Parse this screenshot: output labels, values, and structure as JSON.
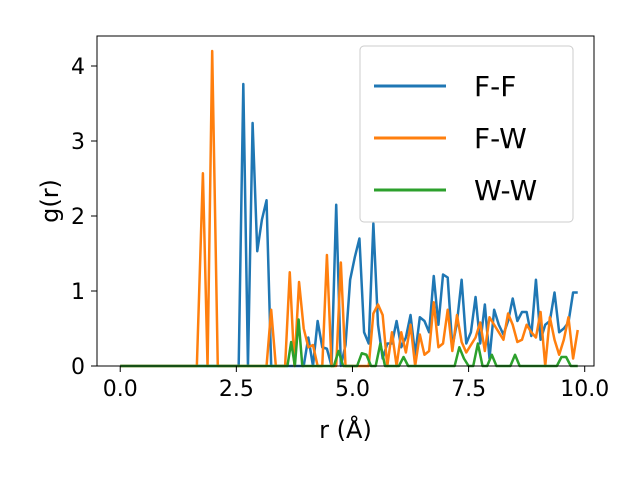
{
  "chart_data": {
    "type": "line",
    "xlabel": "r (Å)",
    "ylabel": "g(r)",
    "xlim": [
      -0.5,
      10.2
    ],
    "ylim": [
      0,
      4.4
    ],
    "xticks": [
      0.0,
      2.5,
      5.0,
      7.5,
      10.0
    ],
    "xtick_labels": [
      "0.0",
      "2.5",
      "5.0",
      "7.5",
      "10.0"
    ],
    "yticks": [
      0,
      1,
      2,
      3,
      4
    ],
    "ytick_labels": [
      "0",
      "1",
      "2",
      "3",
      "4"
    ],
    "grid": false,
    "legend_position": "top-right",
    "series": [
      {
        "name": "F-F",
        "color": "#1f77b4",
        "x": [
          0.0,
          2.45,
          2.55,
          2.65,
          2.75,
          2.85,
          2.95,
          3.05,
          3.15,
          3.25,
          3.35,
          3.45,
          3.55,
          3.65,
          3.75,
          3.85,
          3.95,
          4.05,
          4.15,
          4.25,
          4.35,
          4.45,
          4.55,
          4.65,
          4.75,
          4.85,
          4.95,
          5.05,
          5.15,
          5.25,
          5.35,
          5.45,
          5.55,
          5.65,
          5.75,
          5.85,
          5.95,
          6.05,
          6.15,
          6.25,
          6.35,
          6.45,
          6.55,
          6.65,
          6.75,
          6.85,
          6.95,
          7.05,
          7.15,
          7.25,
          7.35,
          7.45,
          7.55,
          7.65,
          7.75,
          7.85,
          7.95,
          8.05,
          8.15,
          8.25,
          8.35,
          8.45,
          8.55,
          8.65,
          8.75,
          8.85,
          8.95,
          9.05,
          9.15,
          9.25,
          9.35,
          9.45,
          9.55,
          9.65,
          9.75,
          9.85
        ],
        "y": [
          0.0,
          0.0,
          0.0,
          3.76,
          0.0,
          3.24,
          1.53,
          1.95,
          2.21,
          0.0,
          0.0,
          0.0,
          0.0,
          0.0,
          0.0,
          0.0,
          0.0,
          0.38,
          0.0,
          0.6,
          0.25,
          0.23,
          0.0,
          2.15,
          0.0,
          0.28,
          1.15,
          1.45,
          1.7,
          0.45,
          0.3,
          1.9,
          0.55,
          0.1,
          0.3,
          0.3,
          0.6,
          0.25,
          0.38,
          0.68,
          0.15,
          0.65,
          0.6,
          0.45,
          1.2,
          0.55,
          1.22,
          1.18,
          0.25,
          0.58,
          1.15,
          0.3,
          0.45,
          0.92,
          0.3,
          0.82,
          0.1,
          0.75,
          0.55,
          0.42,
          0.6,
          0.9,
          0.6,
          0.72,
          0.72,
          0.4,
          1.15,
          0.35,
          0.55,
          0.6,
          0.98,
          0.45,
          0.5,
          0.58,
          0.98,
          0.98
        ]
      },
      {
        "name": "F-W",
        "color": "#ff7f0e",
        "x": [
          0.0,
          1.65,
          1.78,
          1.88,
          1.98,
          2.1,
          2.2,
          3.15,
          3.25,
          3.35,
          3.45,
          3.55,
          3.65,
          3.75,
          3.85,
          3.95,
          4.05,
          4.15,
          4.25,
          4.35,
          4.45,
          4.55,
          4.65,
          4.75,
          4.85,
          4.95,
          5.05,
          5.15,
          5.25,
          5.35,
          5.45,
          5.55,
          5.65,
          5.75,
          5.85,
          5.95,
          6.05,
          6.15,
          6.25,
          6.35,
          6.45,
          6.55,
          6.65,
          6.75,
          6.85,
          6.95,
          7.05,
          7.15,
          7.25,
          7.35,
          7.45,
          7.55,
          7.65,
          7.75,
          7.85,
          7.95,
          8.05,
          8.15,
          8.25,
          8.35,
          8.45,
          8.55,
          8.65,
          8.75,
          8.85,
          8.95,
          9.05,
          9.15,
          9.25,
          9.35,
          9.45,
          9.55,
          9.65,
          9.75,
          9.85
        ],
        "y": [
          0.0,
          0.0,
          2.57,
          0.0,
          4.2,
          0.0,
          0.0,
          0.0,
          0.75,
          0.0,
          0.0,
          0.0,
          1.25,
          0.0,
          1.12,
          0.5,
          0.25,
          0.28,
          0.0,
          0.0,
          1.48,
          0.0,
          0.0,
          1.38,
          0.0,
          0.0,
          0.0,
          0.0,
          0.0,
          0.0,
          0.7,
          0.82,
          0.68,
          0.0,
          0.45,
          0.0,
          0.45,
          0.18,
          0.55,
          0.0,
          0.42,
          0.15,
          0.2,
          0.85,
          0.25,
          0.3,
          0.75,
          0.2,
          0.68,
          0.32,
          0.18,
          0.28,
          0.38,
          0.58,
          0.2,
          0.65,
          0.55,
          0.45,
          0.35,
          0.7,
          0.55,
          0.32,
          0.35,
          0.55,
          0.45,
          0.38,
          0.72,
          0.0,
          0.65,
          0.35,
          0.15,
          0.35,
          0.65,
          0.1,
          0.48
        ]
      },
      {
        "name": "W-W",
        "color": "#2ca02c",
        "x": [
          0.0,
          3.6,
          3.68,
          3.76,
          3.84,
          3.92,
          4.0,
          4.6,
          4.7,
          4.8,
          4.9,
          5.1,
          5.2,
          5.3,
          5.4,
          5.5,
          5.6,
          5.7,
          5.8,
          5.9,
          6.0,
          6.1,
          6.2,
          6.3,
          6.4,
          6.5,
          6.6,
          6.7,
          6.8,
          6.9,
          7.0,
          7.1,
          7.2,
          7.3,
          7.4,
          7.5,
          7.6,
          7.7,
          7.8,
          7.9,
          8.0,
          8.1,
          8.2,
          8.3,
          8.4,
          8.5,
          8.6,
          8.7,
          8.8,
          8.9,
          9.0,
          9.1,
          9.2,
          9.3,
          9.4,
          9.5,
          9.6,
          9.7,
          9.85
        ],
        "y": [
          0.0,
          0.0,
          0.32,
          0.0,
          0.62,
          0.0,
          0.0,
          0.0,
          0.2,
          0.0,
          0.0,
          0.0,
          0.17,
          0.15,
          0.0,
          0.0,
          0.3,
          0.0,
          0.0,
          0.0,
          0.0,
          0.12,
          0.0,
          0.0,
          0.0,
          0.0,
          0.0,
          0.0,
          0.0,
          0.0,
          0.0,
          0.0,
          0.0,
          0.25,
          0.1,
          0.0,
          0.0,
          0.3,
          0.0,
          0.0,
          0.15,
          0.0,
          0.0,
          0.0,
          0.0,
          0.15,
          0.0,
          0.0,
          0.0,
          0.0,
          0.0,
          0.0,
          0.0,
          0.0,
          0.0,
          0.12,
          0.12,
          0.0,
          0.0
        ]
      }
    ]
  }
}
